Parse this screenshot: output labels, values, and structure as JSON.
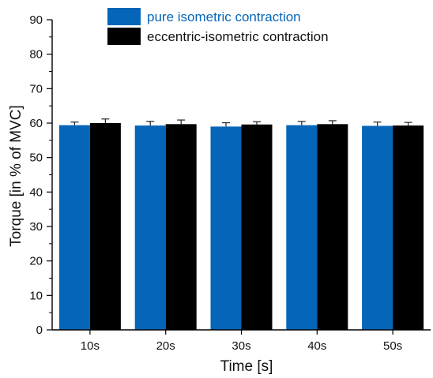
{
  "chart_data": {
    "type": "bar",
    "xlabel": "Time [s]",
    "ylabel": "Torque [in % of MVC]",
    "categories": [
      "10s",
      "20s",
      "30s",
      "40s",
      "50s"
    ],
    "ylim": [
      0,
      90
    ],
    "yticks": [
      0,
      10,
      20,
      30,
      40,
      50,
      60,
      70,
      80,
      90
    ],
    "grid": false,
    "legend_position": "top",
    "series": [
      {
        "name": "pure isometric contraction",
        "color": "#0565b8",
        "values": [
          59.4,
          59.3,
          59.0,
          59.4,
          59.2
        ],
        "errors": [
          0.9,
          1.2,
          1.1,
          1.1,
          1.1
        ]
      },
      {
        "name": "eccentric-isometric contraction",
        "color": "#000000",
        "values": [
          60.0,
          59.7,
          59.6,
          59.7,
          59.3
        ],
        "errors": [
          1.2,
          1.2,
          0.8,
          1.0,
          0.9
        ]
      }
    ]
  }
}
